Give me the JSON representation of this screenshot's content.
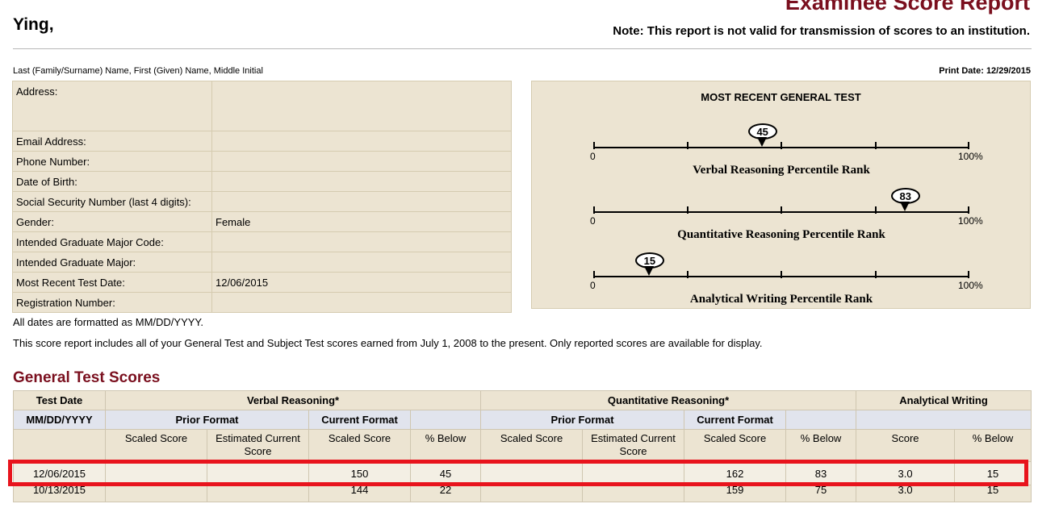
{
  "header": {
    "title": "Examinee Score Report",
    "name": "Ying,",
    "note": "Note: This report is not valid for transmission of scores to an institution.",
    "name_format": "Last (Family/Surname) Name, First (Given) Name, Middle Initial",
    "print_date_label": "Print Date:",
    "print_date": "12/29/2015"
  },
  "info": {
    "rows": [
      {
        "label": "Address:",
        "value": ""
      },
      {
        "label": "Email Address:",
        "value": ""
      },
      {
        "label": "Phone Number:",
        "value": ""
      },
      {
        "label": "Date of Birth:",
        "value": ""
      },
      {
        "label": "Social Security Number (last 4 digits):",
        "value": ""
      },
      {
        "label": "Gender:",
        "value": "Female"
      },
      {
        "label": "Intended Graduate Major Code:",
        "value": ""
      },
      {
        "label": "Intended Graduate Major:",
        "value": ""
      },
      {
        "label": "Most Recent Test Date:",
        "value": "12/06/2015"
      },
      {
        "label": "Registration Number:",
        "value": ""
      }
    ]
  },
  "percentiles": {
    "title": "MOST RECENT GENERAL TEST",
    "min_label": "0",
    "max_label": "100%",
    "scales": [
      {
        "label": "Verbal Reasoning Percentile Rank",
        "value": 45,
        "value_text": "45"
      },
      {
        "label": "Quantitative Reasoning Percentile Rank",
        "value": 83,
        "value_text": "83"
      },
      {
        "label": "Analytical Writing Percentile Rank",
        "value": 15,
        "value_text": "15"
      }
    ]
  },
  "notes": {
    "dates": "All dates are formatted as MM/DD/YYYY.",
    "scope": "This score report includes all of your General Test and Subject Test scores earned from July 1, 2008 to the present. Only reported scores are available for display."
  },
  "scores": {
    "section_title": "General Test Scores",
    "h1": {
      "test_date": "Test Date",
      "verbal": "Verbal Reasoning*",
      "quant": "Quantitative Reasoning*",
      "writing": "Analytical Writing"
    },
    "h2": {
      "date_format": "MM/DD/YYYY",
      "prior": "Prior Format",
      "current": "Current Format"
    },
    "h3": {
      "scaled": "Scaled Score",
      "estimated": "Estimated Current Score",
      "pct_below": "% Below",
      "score": "Score"
    },
    "rows": [
      {
        "date": "12/06/2015",
        "v_prior_scaled": "",
        "v_prior_est": "",
        "v_current": "150",
        "v_pct": "45",
        "q_prior_scaled": "",
        "q_prior_est": "",
        "q_current": "162",
        "q_pct": "83",
        "aw_score": "3.0",
        "aw_pct": "15"
      },
      {
        "date": "10/13/2015",
        "v_prior_scaled": "",
        "v_prior_est": "",
        "v_current": "144",
        "v_pct": "22",
        "q_prior_scaled": "",
        "q_prior_est": "",
        "q_current": "159",
        "q_pct": "75",
        "aw_score": "3.0",
        "aw_pct": "15"
      }
    ]
  },
  "colors": {
    "title": "#7a0f1e",
    "panel": "#ece4d2",
    "highlight": "#e8141d"
  }
}
